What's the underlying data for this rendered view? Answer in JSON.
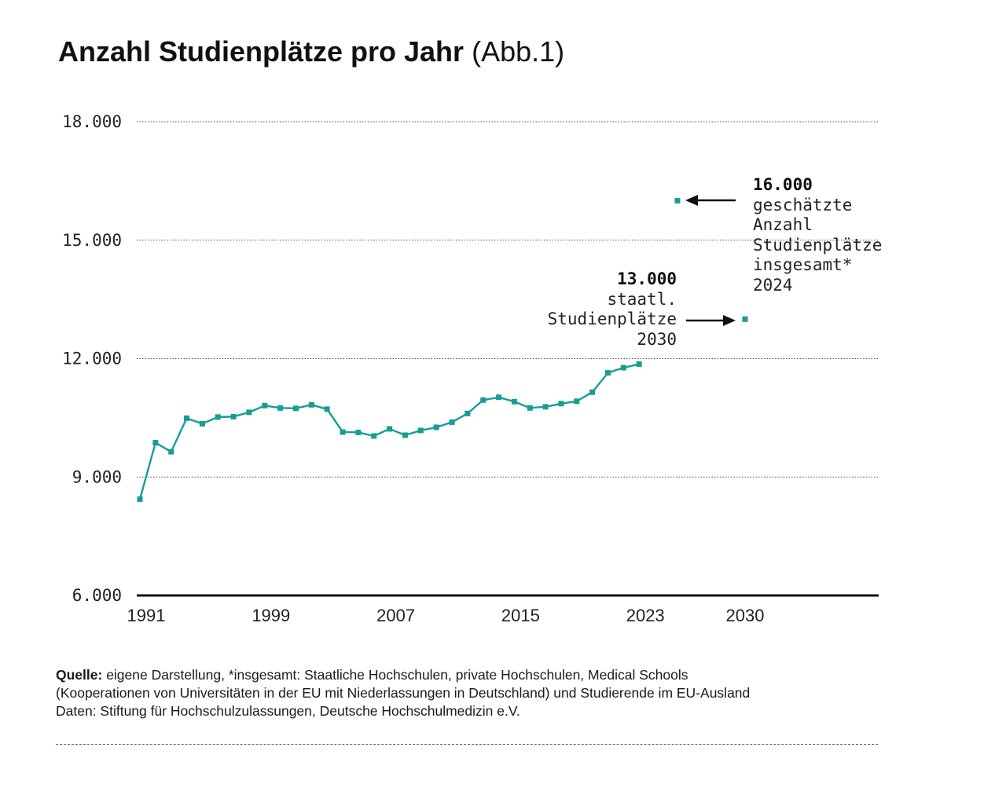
{
  "title": {
    "main": "Anzahl Studienplätze pro Jahr",
    "sub": "(Abb.1)"
  },
  "chart_data": {
    "type": "line",
    "title": "Anzahl Studienplätze pro Jahr (Abb.1)",
    "xlabel": "",
    "ylabel": "",
    "ylim": [
      6000,
      18000
    ],
    "xlim": [
      1991,
      2038
    ],
    "yticks": [
      6000,
      9000,
      12000,
      15000,
      18000
    ],
    "ytick_labels": [
      "6.000",
      "9.000",
      "12.000",
      "15.000",
      "18.000"
    ],
    "xticks": [
      1991,
      1999,
      2007,
      2015,
      2023,
      2030
    ],
    "xtick_labels": [
      "1991",
      "1999",
      "2007",
      "2015",
      "2023",
      "2030"
    ],
    "color": "#159e96",
    "series": [
      {
        "name": "Studienplätze",
        "x": [
          1991,
          1992,
          1993,
          1994,
          1995,
          1996,
          1997,
          1998,
          1999,
          2000,
          2001,
          2002,
          2003,
          2004,
          2005,
          2006,
          2007,
          2008,
          2009,
          2010,
          2011,
          2012,
          2013,
          2014,
          2015,
          2016,
          2017,
          2018,
          2019,
          2020,
          2021,
          2022,
          2023
        ],
        "values": [
          8440,
          9870,
          9640,
          10490,
          10350,
          10520,
          10530,
          10640,
          10810,
          10750,
          10740,
          10830,
          10720,
          10140,
          10130,
          10040,
          10220,
          10060,
          10180,
          10260,
          10390,
          10610,
          10950,
          11020,
          10910,
          10750,
          10780,
          10860,
          10920,
          11150,
          11640,
          11770,
          11860
        ]
      }
    ],
    "points": [
      {
        "name": "geschätzte Studienplätze insgesamt 2024",
        "x": 2025.5,
        "value": 16000
      },
      {
        "name": "staatl. Studienplätze 2030",
        "x": 2030,
        "value": 13000
      }
    ],
    "annotations": [
      {
        "value": "16.000",
        "lines": [
          "geschätzte",
          "Anzahl",
          "Studienplätze",
          "insgesamt*",
          "2024"
        ]
      },
      {
        "value": "13.000",
        "lines": [
          "staatl.",
          "Studienplätze",
          "2030"
        ]
      }
    ]
  },
  "footer": {
    "source_label": "Quelle:",
    "source_text": " eigene Darstellung, *insgesamt: Staatliche Hochschulen, private Hochschulen, Medical Schools",
    "line2": "(Kooperationen von Universitäten in der EU mit Niederlassungen in Deutschland) und Studierende im EU-Ausland",
    "line3": "Daten: Stiftung für Hochschulzulassungen, Deutsche Hochschulmedizin e.V."
  }
}
